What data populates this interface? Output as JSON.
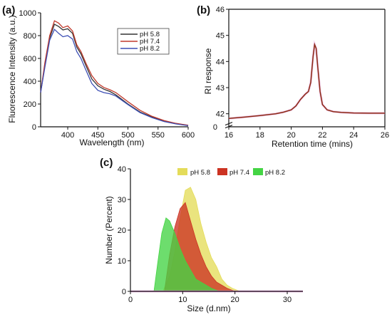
{
  "chart_data": [
    {
      "type": "line",
      "panel_label": "(a)",
      "xlabel": "Wavelength (nm)",
      "ylabel": "Fluorescence Intensity (a.u.)",
      "xlim": [
        355,
        600
      ],
      "ylim": [
        0,
        1000
      ],
      "xticks": [
        400,
        450,
        500,
        550,
        600
      ],
      "yticks": [
        0,
        200,
        400,
        600,
        800,
        1000
      ],
      "legend_position": "top-right",
      "series": [
        {
          "name": "pH 5.8",
          "color": "#333333",
          "x": [
            355,
            362,
            370,
            378,
            385,
            392,
            400,
            408,
            415,
            422,
            430,
            440,
            450,
            460,
            470,
            480,
            500,
            520,
            540,
            560,
            580,
            600
          ],
          "y": [
            300,
            540,
            780,
            900,
            880,
            850,
            860,
            820,
            700,
            640,
            540,
            420,
            360,
            330,
            310,
            280,
            200,
            130,
            85,
            50,
            28,
            12
          ]
        },
        {
          "name": "pH 7.4",
          "color": "#c0392b",
          "x": [
            355,
            362,
            370,
            378,
            385,
            392,
            400,
            408,
            415,
            422,
            430,
            440,
            450,
            460,
            470,
            480,
            500,
            520,
            540,
            560,
            580,
            600
          ],
          "y": [
            300,
            560,
            800,
            930,
            910,
            870,
            885,
            840,
            720,
            660,
            560,
            450,
            380,
            345,
            325,
            300,
            220,
            145,
            92,
            55,
            30,
            14
          ]
        },
        {
          "name": "pH 8.2",
          "color": "#3d4fb5",
          "x": [
            355,
            362,
            370,
            378,
            385,
            392,
            400,
            408,
            415,
            422,
            430,
            440,
            450,
            460,
            470,
            480,
            500,
            520,
            540,
            560,
            580,
            600
          ],
          "y": [
            300,
            520,
            760,
            855,
            820,
            790,
            800,
            770,
            660,
            600,
            500,
            380,
            320,
            300,
            290,
            270,
            195,
            125,
            80,
            46,
            25,
            10
          ]
        }
      ]
    },
    {
      "type": "line",
      "panel_label": "(b)",
      "xlabel": "Retention time (mins)",
      "ylabel": "RI response",
      "xlim": [
        16,
        26
      ],
      "ylim": [
        41.5,
        46
      ],
      "xticks": [
        16,
        18,
        20,
        22,
        24,
        26
      ],
      "yticks": [
        42,
        43,
        44,
        45,
        46
      ],
      "y_axis_break": true,
      "y_axis_zero_label": "0",
      "series": [
        {
          "color": "#8b2a12",
          "x": [
            16,
            17,
            18,
            19,
            19.5,
            20,
            20.3,
            20.6,
            20.9,
            21.1,
            21.25,
            21.4,
            21.5,
            21.6,
            21.7,
            21.85,
            22.0,
            22.3,
            22.7,
            23.2,
            24,
            25,
            26
          ],
          "y": [
            41.82,
            41.87,
            41.93,
            42.0,
            42.06,
            42.15,
            42.3,
            42.55,
            42.75,
            42.85,
            43.2,
            44.2,
            44.65,
            44.5,
            43.8,
            42.85,
            42.35,
            42.15,
            42.08,
            42.05,
            42.03,
            42.02,
            42.02
          ]
        }
      ]
    },
    {
      "type": "area",
      "panel_label": "(c)",
      "xlabel": "Size (d.nm)",
      "ylabel": "Number (Percent)",
      "xlim": [
        0,
        33
      ],
      "ylim": [
        0,
        40
      ],
      "xticks": [
        0,
        10,
        20,
        30
      ],
      "yticks": [
        0,
        10,
        20,
        30,
        40
      ],
      "legend_position": "top",
      "series": [
        {
          "name": "pH 5.8",
          "color": "#e4dc5a",
          "x": [
            6.2,
            7.5,
            8.5,
            9.5,
            10.5,
            11.5,
            12.5,
            13.5,
            14.5,
            15.5,
            16.5,
            17.5,
            18.5,
            19.5,
            21
          ],
          "y": [
            0,
            5,
            13,
            24,
            33,
            34,
            30,
            22,
            16,
            11,
            8,
            4,
            2,
            1,
            0
          ]
        },
        {
          "name": "pH 7.4",
          "color": "#cc3322",
          "x": [
            6.5,
            7.5,
            8.5,
            9.5,
            10.5,
            11.5,
            12.5,
            13.5,
            14.5,
            15.5,
            16.5,
            17.5,
            18.5,
            20
          ],
          "y": [
            0,
            12,
            21,
            27,
            29,
            23,
            17,
            12,
            8,
            5,
            3,
            2,
            1,
            0
          ]
        },
        {
          "name": "pH 8.2",
          "color": "#44d444",
          "x": [
            4.5,
            5.2,
            6.0,
            6.8,
            7.5,
            8.5,
            9.5,
            10.5,
            11.5,
            12.5,
            13.5,
            14.5,
            15.5,
            17
          ],
          "y": [
            0,
            9,
            19,
            24,
            23,
            19,
            14,
            10,
            7,
            4,
            3,
            2,
            1,
            0
          ]
        }
      ]
    }
  ]
}
